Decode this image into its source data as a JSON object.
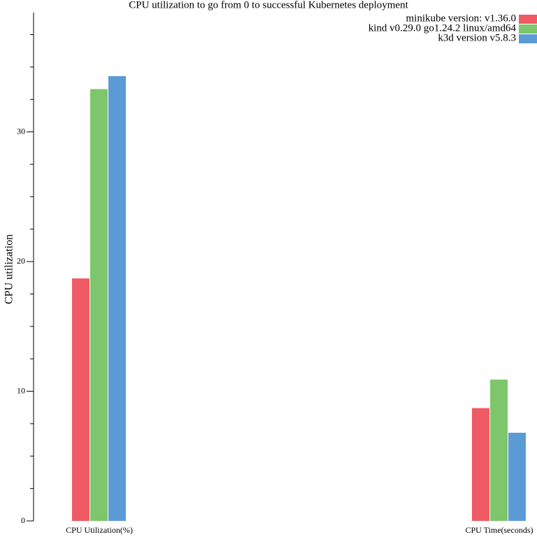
{
  "chart_data": {
    "type": "bar",
    "title": "CPU utilization to go from 0 to successful Kubernetes deployment",
    "y_label": "CPU utilization",
    "categories": [
      "CPU Utilization(%)",
      "CPU Time(seconds)"
    ],
    "series": [
      {
        "name": "minikube version: v1.36.0",
        "color": "#f05a64",
        "values": [
          18.7,
          8.7
        ]
      },
      {
        "name": "kind v0.29.0 go1.24.2 linux/amd64",
        "color": "#7dc66b",
        "values": [
          33.3,
          10.9
        ]
      },
      {
        "name": "k3d version v5.8.3",
        "color": "#5b9bd5",
        "values": [
          34.3,
          6.8
        ]
      }
    ],
    "ylim": [
      0,
      39.2
    ],
    "yticks": [
      0,
      10,
      20,
      30
    ],
    "yminorticks": [
      2.5,
      5,
      7.5,
      12.5,
      15,
      17.5,
      22.5,
      25,
      27.5,
      32.5,
      35,
      37.5
    ],
    "legend": "top-right"
  }
}
